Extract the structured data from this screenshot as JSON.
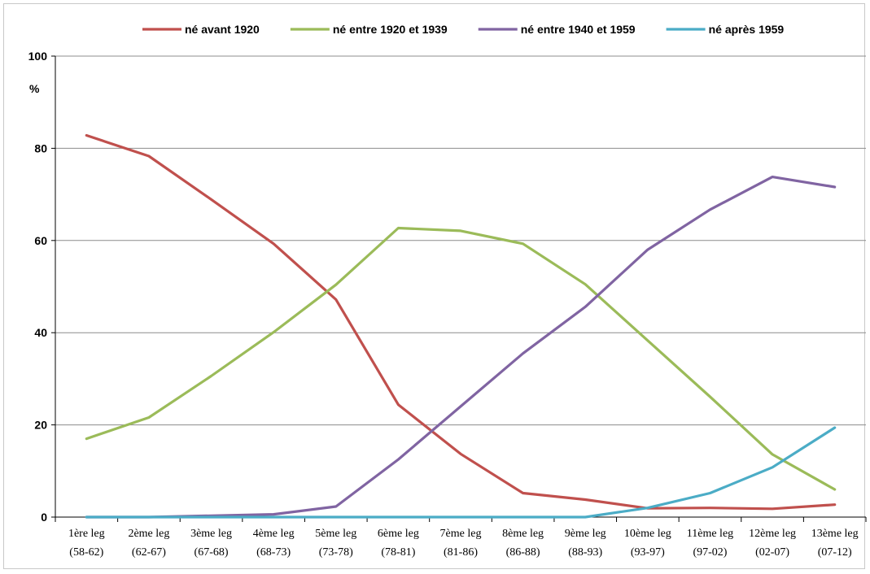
{
  "chart_data": {
    "type": "line",
    "title": "",
    "xlabel": "",
    "ylabel": "%",
    "ylim": [
      0,
      100
    ],
    "yticks": [
      "0",
      "20",
      "40",
      "60",
      "80",
      "100"
    ],
    "grid": true,
    "legend_position": "top",
    "categories": [
      [
        "1ère leg",
        "(58-62)"
      ],
      [
        "2ème leg",
        "(62-67)"
      ],
      [
        "3ème leg",
        "(67-68)"
      ],
      [
        "4ème leg",
        "(68-73)"
      ],
      [
        "5ème leg",
        "(73-78)"
      ],
      [
        "6ème leg",
        "(78-81)"
      ],
      [
        "7ème leg",
        "(81-86)"
      ],
      [
        "8ème leg",
        "(86-88)"
      ],
      [
        "9ème leg",
        "(88-93)"
      ],
      [
        "10ème leg",
        "(93-97)"
      ],
      [
        "11ème leg",
        "(97-02)"
      ],
      [
        "12ème leg",
        "(02-07)"
      ],
      [
        "13ème leg",
        "(07-12)"
      ]
    ],
    "series": [
      {
        "name": "né avant 1920",
        "color": "#c0504d",
        "values": [
          82.8,
          78.3,
          68.9,
          59.3,
          47.2,
          24.4,
          13.7,
          5.2,
          3.8,
          1.9,
          2.0,
          1.8,
          2.7
        ]
      },
      {
        "name": "né entre 1920 et 1939",
        "color": "#9bbb59",
        "values": [
          17.0,
          21.6,
          30.6,
          40.1,
          50.4,
          62.7,
          62.1,
          59.3,
          50.5,
          38.3,
          26.1,
          13.6,
          6.0
        ]
      },
      {
        "name": "né entre 1940 et 1959",
        "color": "#8064a2",
        "values": [
          0.0,
          0.0,
          0.3,
          0.6,
          2.3,
          12.5,
          24.0,
          35.5,
          45.6,
          58.0,
          66.7,
          73.8,
          71.6
        ]
      },
      {
        "name": "né après 1959",
        "color": "#4bacc6",
        "values": [
          0.0,
          0.0,
          0.0,
          0.0,
          0.0,
          0.0,
          0.0,
          0.0,
          0.0,
          2.0,
          5.2,
          10.8,
          19.4
        ]
      }
    ]
  }
}
